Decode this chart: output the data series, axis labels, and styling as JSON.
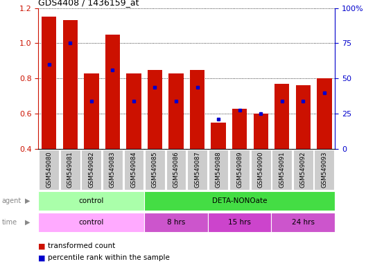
{
  "title": "GDS4408 / 1436159_at",
  "samples": [
    "GSM549080",
    "GSM549081",
    "GSM549082",
    "GSM549083",
    "GSM549084",
    "GSM549085",
    "GSM549086",
    "GSM549087",
    "GSM549088",
    "GSM549089",
    "GSM549090",
    "GSM549091",
    "GSM549092",
    "GSM549093"
  ],
  "red_values": [
    1.15,
    1.13,
    0.83,
    1.05,
    0.83,
    0.85,
    0.83,
    0.85,
    0.55,
    0.63,
    0.6,
    0.77,
    0.76,
    0.8
  ],
  "blue_values": [
    0.88,
    1.0,
    0.67,
    0.85,
    0.67,
    0.75,
    0.67,
    0.75,
    0.57,
    0.62,
    0.6,
    0.67,
    0.67,
    0.72
  ],
  "ylim_left": [
    0.4,
    1.2
  ],
  "ylim_right": [
    0,
    100
  ],
  "yticks_left": [
    0.4,
    0.6,
    0.8,
    1.0,
    1.2
  ],
  "yticks_right": [
    0,
    25,
    50,
    75,
    100
  ],
  "bar_color": "#CC1100",
  "dot_color": "#0000CC",
  "bg_color": "#FFFFFF",
  "agent_control_label": "control",
  "agent_treatment_label": "DETA-NONOate",
  "time_control_label": "control",
  "time_8h_label": "8 hrs",
  "time_15h_label": "15 hrs",
  "time_24h_label": "24 hrs",
  "agent_control_color": "#AAFFAA",
  "agent_treatment_color": "#44DD44",
  "time_control_color": "#FFAAFF",
  "time_8h_color": "#CC55CC",
  "time_15h_color": "#CC44CC",
  "time_24h_color": "#CC55CC",
  "tick_bg_color": "#CCCCCC",
  "legend_red_label": "transformed count",
  "legend_blue_label": "percentile rank within the sample",
  "control_count": 5,
  "t8h_count": 3,
  "t15h_count": 3,
  "t24h_count": 3
}
